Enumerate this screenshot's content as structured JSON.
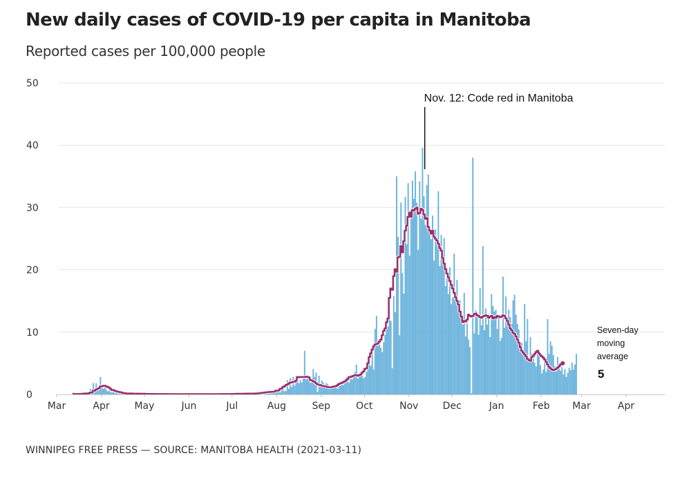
{
  "header": {
    "title": "New daily cases of COVID-19 per capita in Manitoba",
    "subtitle": "Reported cases per 100,000 people"
  },
  "footer": {
    "credit": "WINNIPEG FREE PRESS — SOURCE: MANITOBA HEALTH (2021-03-11)"
  },
  "colors": {
    "bars": "#6ab2dc",
    "line": "#99326f",
    "grid": "#e6e6e6",
    "annotation": "#111111"
  },
  "chart_data": {
    "type": "bar",
    "title": "New daily cases of COVID-19 per capita in Manitoba",
    "subtitle": "Reported cases per 100,000 people",
    "xlabel": "",
    "ylabel": "Reported cases per 100,000 people",
    "ylim": [
      0,
      50
    ],
    "yticks": [
      0,
      10,
      20,
      30,
      40,
      50
    ],
    "ytick_labels": [
      "0",
      "10",
      "20",
      "30",
      "40",
      "50"
    ],
    "x_start_date": "2020-03-01",
    "x_end_date": "2021-04-01",
    "xtick_dates": [
      "2020-03-01",
      "2020-04-01",
      "2020-05-01",
      "2020-06-01",
      "2020-07-01",
      "2020-08-01",
      "2020-09-01",
      "2020-10-01",
      "2020-11-01",
      "2020-12-01",
      "2021-01-01",
      "2021-02-01",
      "2021-03-01",
      "2021-04-01"
    ],
    "xtick_labels": [
      "Mar",
      "Apr",
      "May",
      "Jun",
      "Jul",
      "Aug",
      "Sep",
      "Oct",
      "Nov",
      "Dec",
      "Jan",
      "Feb",
      "Mar",
      "Apr"
    ],
    "grid": true,
    "series_start_date": "2020-03-12",
    "series": [
      {
        "name": "New daily cases per 100,000",
        "kind": "bar",
        "values": [
          0.1,
          0,
          0.1,
          0,
          0.2,
          0.1,
          0.3,
          0.1,
          0.4,
          0.2,
          0.1,
          0.3,
          0.9,
          0.4,
          1.8,
          0.6,
          1.8,
          0.8,
          1.3,
          2.8,
          1.1,
          0.9,
          1.2,
          0.8,
          0.5,
          0.6,
          0.4,
          0.3,
          0.9,
          0.2,
          0.3,
          0.1,
          0.2,
          0.1,
          0.2,
          0.1,
          0.1,
          0.2,
          0.1,
          0.1,
          0.2,
          0.1,
          0,
          0.1,
          0.1,
          0.2,
          0.1,
          0.1,
          0,
          0.1,
          0.1,
          0,
          0.1,
          0.1,
          0.1,
          0,
          0.1,
          0,
          0.1,
          0.1,
          0,
          0.1,
          0,
          0.1,
          0,
          0.1,
          0,
          0,
          0.1,
          0,
          0.1,
          0,
          0.1,
          0,
          0,
          0.1,
          0,
          0.1,
          0,
          0.1,
          0,
          0.1,
          0,
          0,
          0.1,
          0,
          0.1,
          0,
          0,
          0.1,
          0,
          0,
          0.1,
          0,
          0.1,
          0,
          0,
          0.1,
          0,
          0.1,
          0,
          0.1,
          0,
          0.1,
          0,
          0.1,
          0,
          0.1,
          0.1,
          0,
          0.1,
          0,
          0.2,
          0.1,
          0,
          0.1,
          0.1,
          0.2,
          0,
          0.1,
          0.1,
          0.2,
          0.1,
          0.1,
          0.2,
          0.1,
          0.2,
          0.1,
          0,
          0.2,
          0.1,
          0.2,
          0.1,
          0.3,
          0.4,
          0.2,
          0.7,
          0.3,
          0.5,
          0.4,
          0.3,
          0.6,
          0.4,
          0.5,
          0.3,
          0.6,
          1.3,
          0.5,
          0.6,
          2.3,
          0.9,
          2.6,
          1.2,
          2.8,
          1.4,
          2.1,
          2.5,
          1.8,
          2.3,
          1.9,
          2.6,
          7.0,
          2.4,
          3.1,
          2.7,
          1.9,
          2.6,
          4.1,
          2.8,
          3.5,
          0.4,
          3.0,
          1.6,
          2.2,
          1.9,
          1.3,
          1.8,
          1.7,
          1.2,
          1.4,
          1.0,
          1.3,
          1.2,
          1.1,
          0.9,
          1.3,
          1.4,
          1.6,
          1.5,
          2.0,
          2.8,
          2.3,
          1.9,
          3.0,
          2.4,
          2.9,
          3.6,
          4.8,
          2.5,
          3.2,
          3.4,
          3.0,
          2.6,
          2.8,
          3.6,
          4.0,
          5.2,
          4.6,
          7.1,
          4.0,
          10.5,
          12.6,
          7.8,
          8.0,
          7.5,
          6.8,
          8.4,
          9.6,
          11.4,
          10.9,
          12.5,
          11.8,
          4.2,
          15.8,
          13.2,
          35.0,
          25.3,
          9.5,
          30.8,
          19.5,
          16.2,
          31.7,
          24.1,
          33.9,
          22.3,
          28.2,
          34.3,
          31.4,
          35.8,
          30.8,
          23.2,
          34.2,
          28.2,
          39.6,
          31.8,
          27.2,
          33.6,
          35.3,
          26.8,
          24.9,
          28.7,
          21.5,
          26.5,
          24.8,
          32.6,
          20.6,
          25.6,
          22.7,
          25.1,
          17.4,
          18.9,
          16.1,
          20.4,
          14.5,
          15.6,
          22.6,
          16.2,
          18.4,
          13.9,
          15.1,
          12.3,
          11.2,
          16.3,
          9.3,
          11.4,
          8.8,
          7.6,
          0.2,
          38.0,
          9.8,
          13.5,
          12.5,
          9.6,
          17.1,
          11.1,
          23.8,
          10.3,
          13.8,
          11.2,
          12.8,
          9.2,
          16.1,
          14.2,
          13.3,
          13.6,
          10.5,
          12.6,
          8.6,
          9.1,
          18.9,
          10.7,
          15.7,
          11.0,
          13.6,
          12.4,
          11.3,
          15.1,
          16.0,
          12.8,
          11.3,
          10.4,
          7.1,
          8.3,
          6.5,
          14.5,
          8.5,
          12.1,
          5.9,
          9.2,
          6.5,
          5.8,
          5.1,
          4.5,
          6.5,
          6.2,
          4.7,
          3.4,
          4.0,
          5.7,
          3.6,
          12.1,
          6.5,
          8.5,
          7.8,
          6.3,
          4.5,
          3.7,
          6.0,
          4.9,
          3.8,
          4.4,
          3.2,
          4.1,
          2.8,
          3.5,
          4.3,
          3.9,
          5.1,
          4.0,
          4.8,
          6.5
        ]
      },
      {
        "name": "Seven-day moving average",
        "kind": "line",
        "values": [
          0.1,
          0.05,
          0.07,
          0.05,
          0.08,
          0.08,
          0.1,
          0.1,
          0.15,
          0.15,
          0.15,
          0.2,
          0.3,
          0.3,
          0.6,
          0.6,
          0.8,
          0.9,
          1.0,
          1.3,
          1.3,
          1.4,
          1.4,
          1.3,
          1.2,
          1.1,
          0.9,
          0.7,
          0.7,
          0.6,
          0.5,
          0.45,
          0.4,
          0.35,
          0.3,
          0.2,
          0.2,
          0.15,
          0.15,
          0.15,
          0.15,
          0.15,
          0.12,
          0.12,
          0.12,
          0.12,
          0.12,
          0.1,
          0.1,
          0.1,
          0.1,
          0.08,
          0.08,
          0.08,
          0.08,
          0.08,
          0.08,
          0.07,
          0.07,
          0.07,
          0.07,
          0.07,
          0.06,
          0.06,
          0.06,
          0.06,
          0.05,
          0.05,
          0.05,
          0.05,
          0.05,
          0.05,
          0.05,
          0.05,
          0.05,
          0.05,
          0.05,
          0.05,
          0.05,
          0.05,
          0.05,
          0.05,
          0.05,
          0.05,
          0.05,
          0.05,
          0.05,
          0.05,
          0.05,
          0.05,
          0.05,
          0.05,
          0.05,
          0.05,
          0.05,
          0.05,
          0.05,
          0.05,
          0.05,
          0.05,
          0.05,
          0.05,
          0.05,
          0.06,
          0.06,
          0.06,
          0.06,
          0.07,
          0.07,
          0.07,
          0.08,
          0.08,
          0.09,
          0.09,
          0.1,
          0.1,
          0.1,
          0.1,
          0.11,
          0.12,
          0.12,
          0.13,
          0.13,
          0.13,
          0.14,
          0.14,
          0.14,
          0.15,
          0.16,
          0.18,
          0.2,
          0.25,
          0.27,
          0.3,
          0.33,
          0.36,
          0.38,
          0.4,
          0.42,
          0.43,
          0.45,
          0.6,
          0.6,
          0.65,
          0.9,
          0.95,
          1.2,
          1.3,
          1.5,
          1.6,
          1.75,
          1.9,
          1.95,
          2.0,
          2.05,
          2.2,
          2.8,
          2.75,
          2.8,
          2.8,
          2.8,
          2.8,
          2.85,
          2.8,
          2.75,
          2.3,
          2.25,
          2.1,
          2.0,
          1.8,
          1.6,
          1.55,
          1.5,
          1.4,
          1.35,
          1.3,
          1.25,
          1.2,
          1.15,
          1.15,
          1.2,
          1.25,
          1.3,
          1.35,
          1.5,
          1.7,
          1.8,
          1.85,
          2.0,
          2.1,
          2.3,
          2.5,
          2.8,
          2.8,
          2.9,
          3.0,
          3.1,
          3.1,
          3.0,
          3.1,
          3.2,
          3.5,
          3.7,
          4.1,
          4.2,
          5.0,
          6.0,
          6.6,
          7.2,
          7.7,
          8.0,
          8.1,
          8.2,
          8.5,
          8.8,
          9.5,
          10.2,
          10.6,
          11.6,
          12.2,
          15.5,
          17.0,
          16.8,
          19.0,
          20.1,
          19.7,
          22.0,
          22.1,
          23.8,
          22.8,
          24.6,
          26.3,
          27.1,
          28.5,
          29.2,
          28.5,
          29.6,
          29.5,
          29.8,
          30.0,
          29.0,
          29.1,
          29.8,
          29.6,
          28.9,
          28.2,
          28.3,
          26.9,
          26.3,
          25.8,
          26.3,
          25.3,
          25.0,
          24.7,
          24.2,
          23.5,
          23.1,
          21.9,
          21.0,
          20.1,
          19.4,
          18.8,
          18.2,
          17.6,
          17.0,
          16.3,
          15.6,
          15.0,
          14.4,
          13.3,
          12.5,
          11.6,
          11.8,
          11.7,
          12.0,
          12.8,
          12.6,
          12.5,
          12.6,
          12.9,
          13.0,
          12.7,
          12.6,
          12.4,
          12.3,
          12.5,
          12.6,
          12.7,
          12.6,
          12.3,
          12.5,
          12.6,
          12.2,
          12.4,
          12.3,
          12.6,
          12.5,
          12.4,
          12.5,
          12.7,
          12.6,
          12.2,
          11.8,
          11.2,
          10.6,
          10.3,
          9.9,
          9.7,
          9.3,
          8.8,
          8.3,
          7.6,
          7.0,
          6.7,
          6.4,
          6.1,
          5.7,
          5.5,
          5.4,
          6.0,
          6.2,
          6.5,
          6.8,
          7.0,
          6.6,
          6.3,
          6.1,
          5.9,
          5.6,
          5.2,
          4.8,
          4.4,
          4.2,
          4.0,
          3.9,
          4.0,
          4.1,
          4.3,
          4.5,
          4.8,
          5.0
        ]
      }
    ],
    "annotations": [
      {
        "date": "2020-11-12",
        "label": "Nov. 12: Code red in Manitoba"
      },
      {
        "label_lines": [
          "Seven-day",
          "moving",
          "average"
        ],
        "value_label": "5"
      }
    ],
    "legend": "none"
  }
}
